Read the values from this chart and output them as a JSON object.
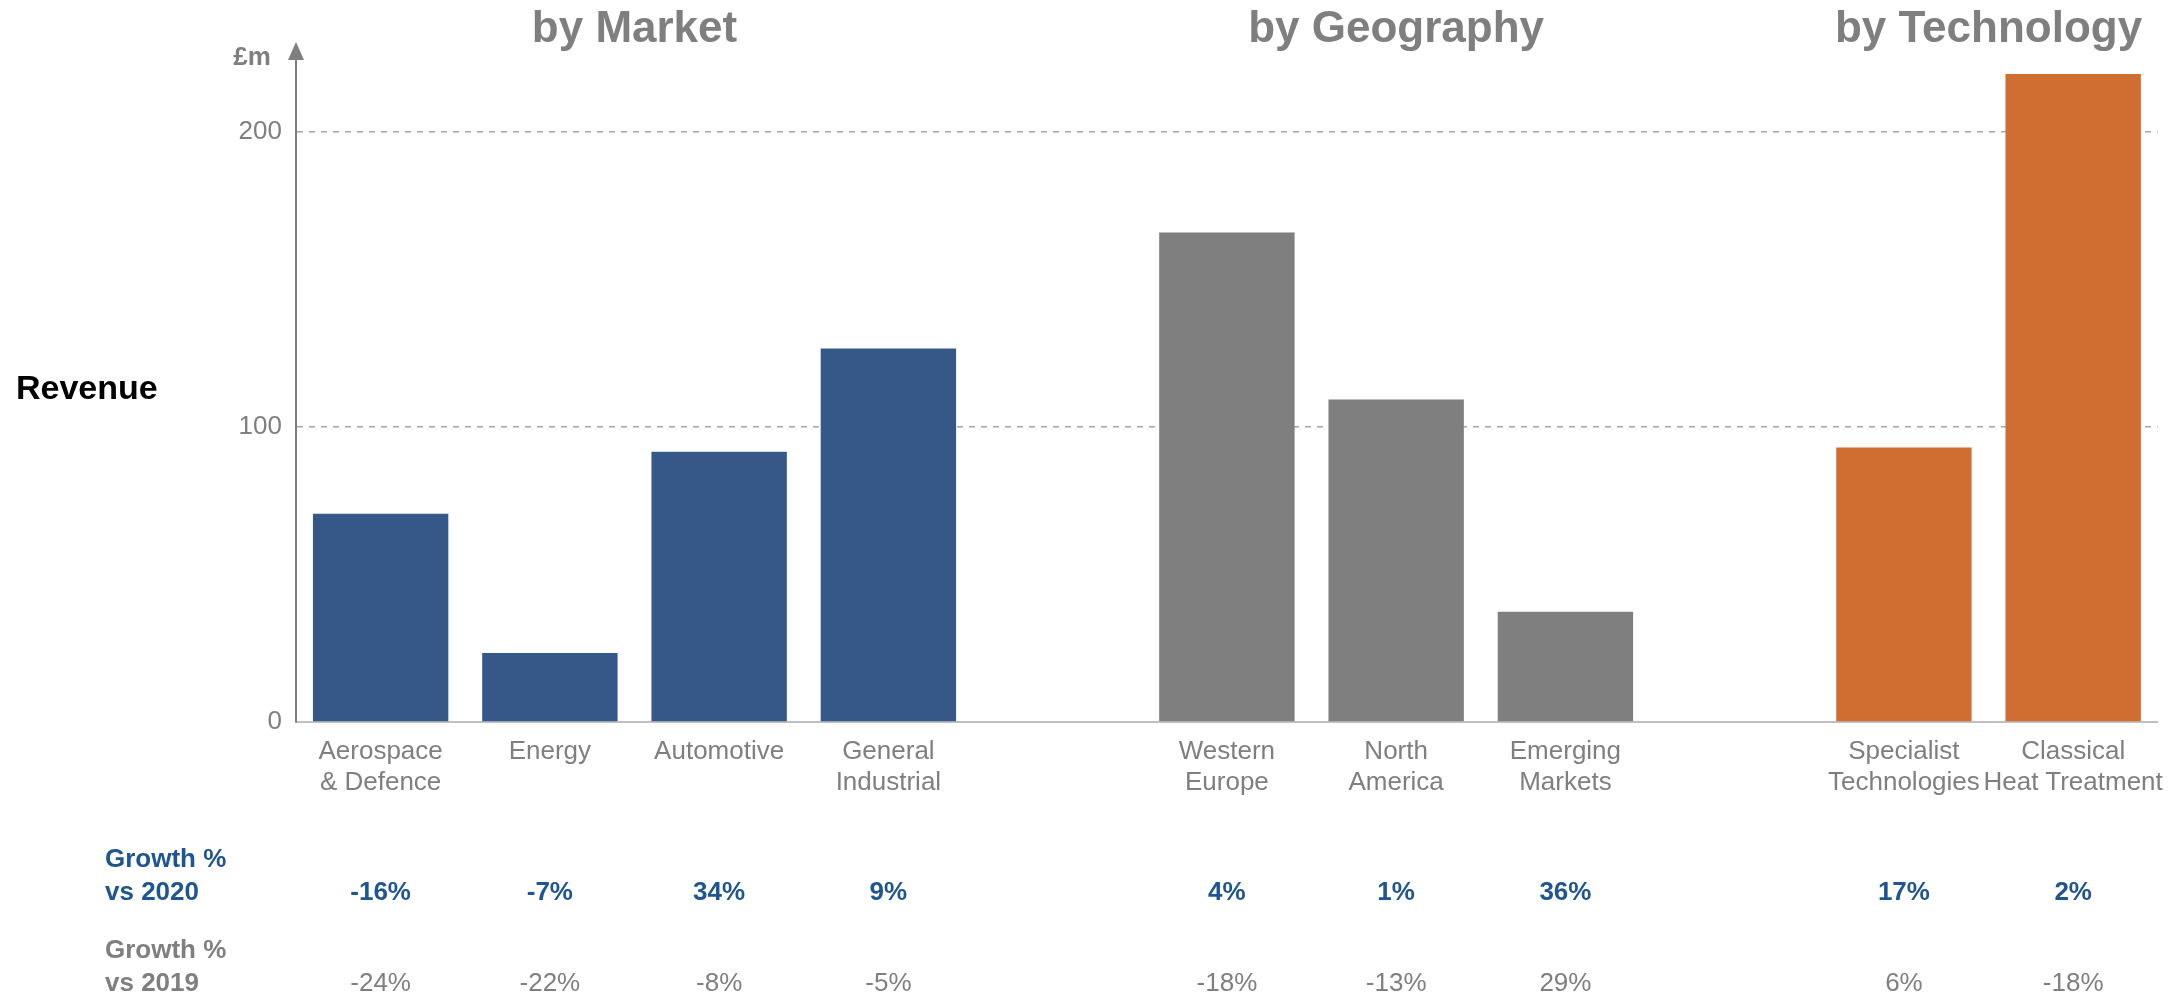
{
  "chart_data": {
    "type": "bar",
    "ylabel": "Revenue",
    "categories": [
      "Aerospace & Defence",
      "Energy",
      "Automotive",
      "General Industrial",
      null,
      "Western Europe",
      "North America",
      "Emerging Markets",
      null,
      "Specialist Technologies",
      "Classical Heat Treatment"
    ],
    "values": [
      70.6,
      23.4,
      91.6,
      126.6,
      null,
      165.9,
      109.3,
      37.4,
      null,
      93,
      219.6
    ],
    "colors": [
      "#355888",
      "#355888",
      "#355888",
      "#355888",
      "#ffffff",
      "#7f7f7f",
      "#7f7f7f",
      "#7f7f7f",
      "#ffffff",
      "#d06e31",
      "#d06e31"
    ],
    "ylim": [
      0,
      225
    ],
    "yticks": [
      0,
      100,
      200
    ],
    "grid": "y",
    "annotations": [
      "£m",
      "by Market",
      "by Geography",
      "by Technology",
      "Growth % vs 2020",
      "-16%",
      "-7%",
      "34%",
      "9%",
      "4%",
      "1%",
      "36%",
      "17%",
      "2%",
      "Growth % vs 2019",
      "-24%",
      "-22%",
      "-8%",
      "-5%",
      "-18%",
      "-13%",
      "29%",
      "6%",
      "-18%"
    ]
  }
}
